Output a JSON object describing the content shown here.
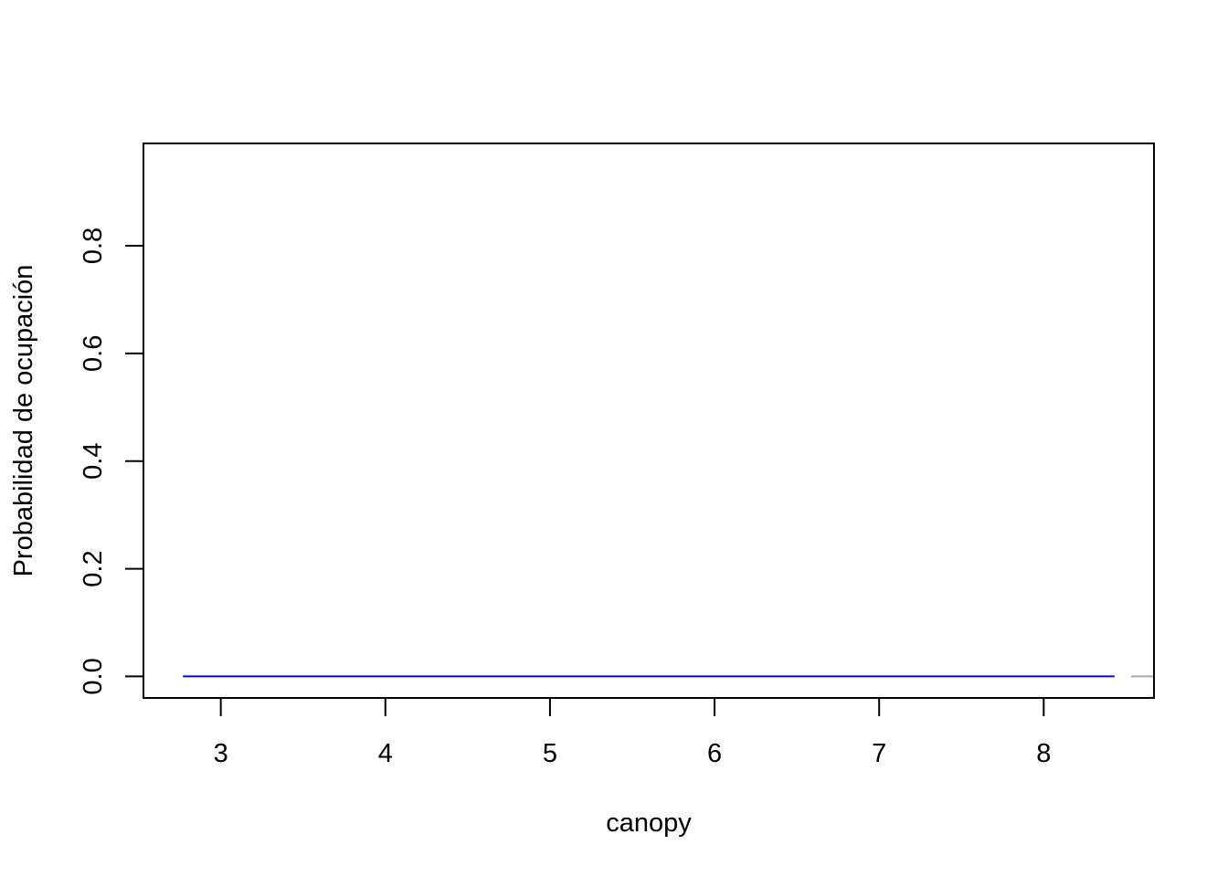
{
  "chart_data": {
    "type": "line",
    "title": "",
    "xlabel": "canopy",
    "ylabel": "Probabilidad de ocupación",
    "xlim": [
      2.53,
      8.67
    ],
    "ylim": [
      -0.04,
      0.99
    ],
    "x_ticks": [
      3,
      4,
      5,
      6,
      7,
      8
    ],
    "y_ticks": [
      0.0,
      0.2,
      0.4,
      0.6,
      0.8
    ],
    "grid": false,
    "legend": "none",
    "series": [
      {
        "color": "#0000ff",
        "style": "solid",
        "x": [
          2.77,
          3,
          4,
          5,
          6,
          7,
          8,
          8.43
        ],
        "y": [
          0,
          0,
          0,
          0,
          0,
          0,
          0,
          0
        ]
      },
      {
        "color": "#aaaaaa",
        "style": "solid",
        "x": [
          8.53,
          8.67
        ],
        "y": [
          0,
          0
        ]
      }
    ]
  }
}
